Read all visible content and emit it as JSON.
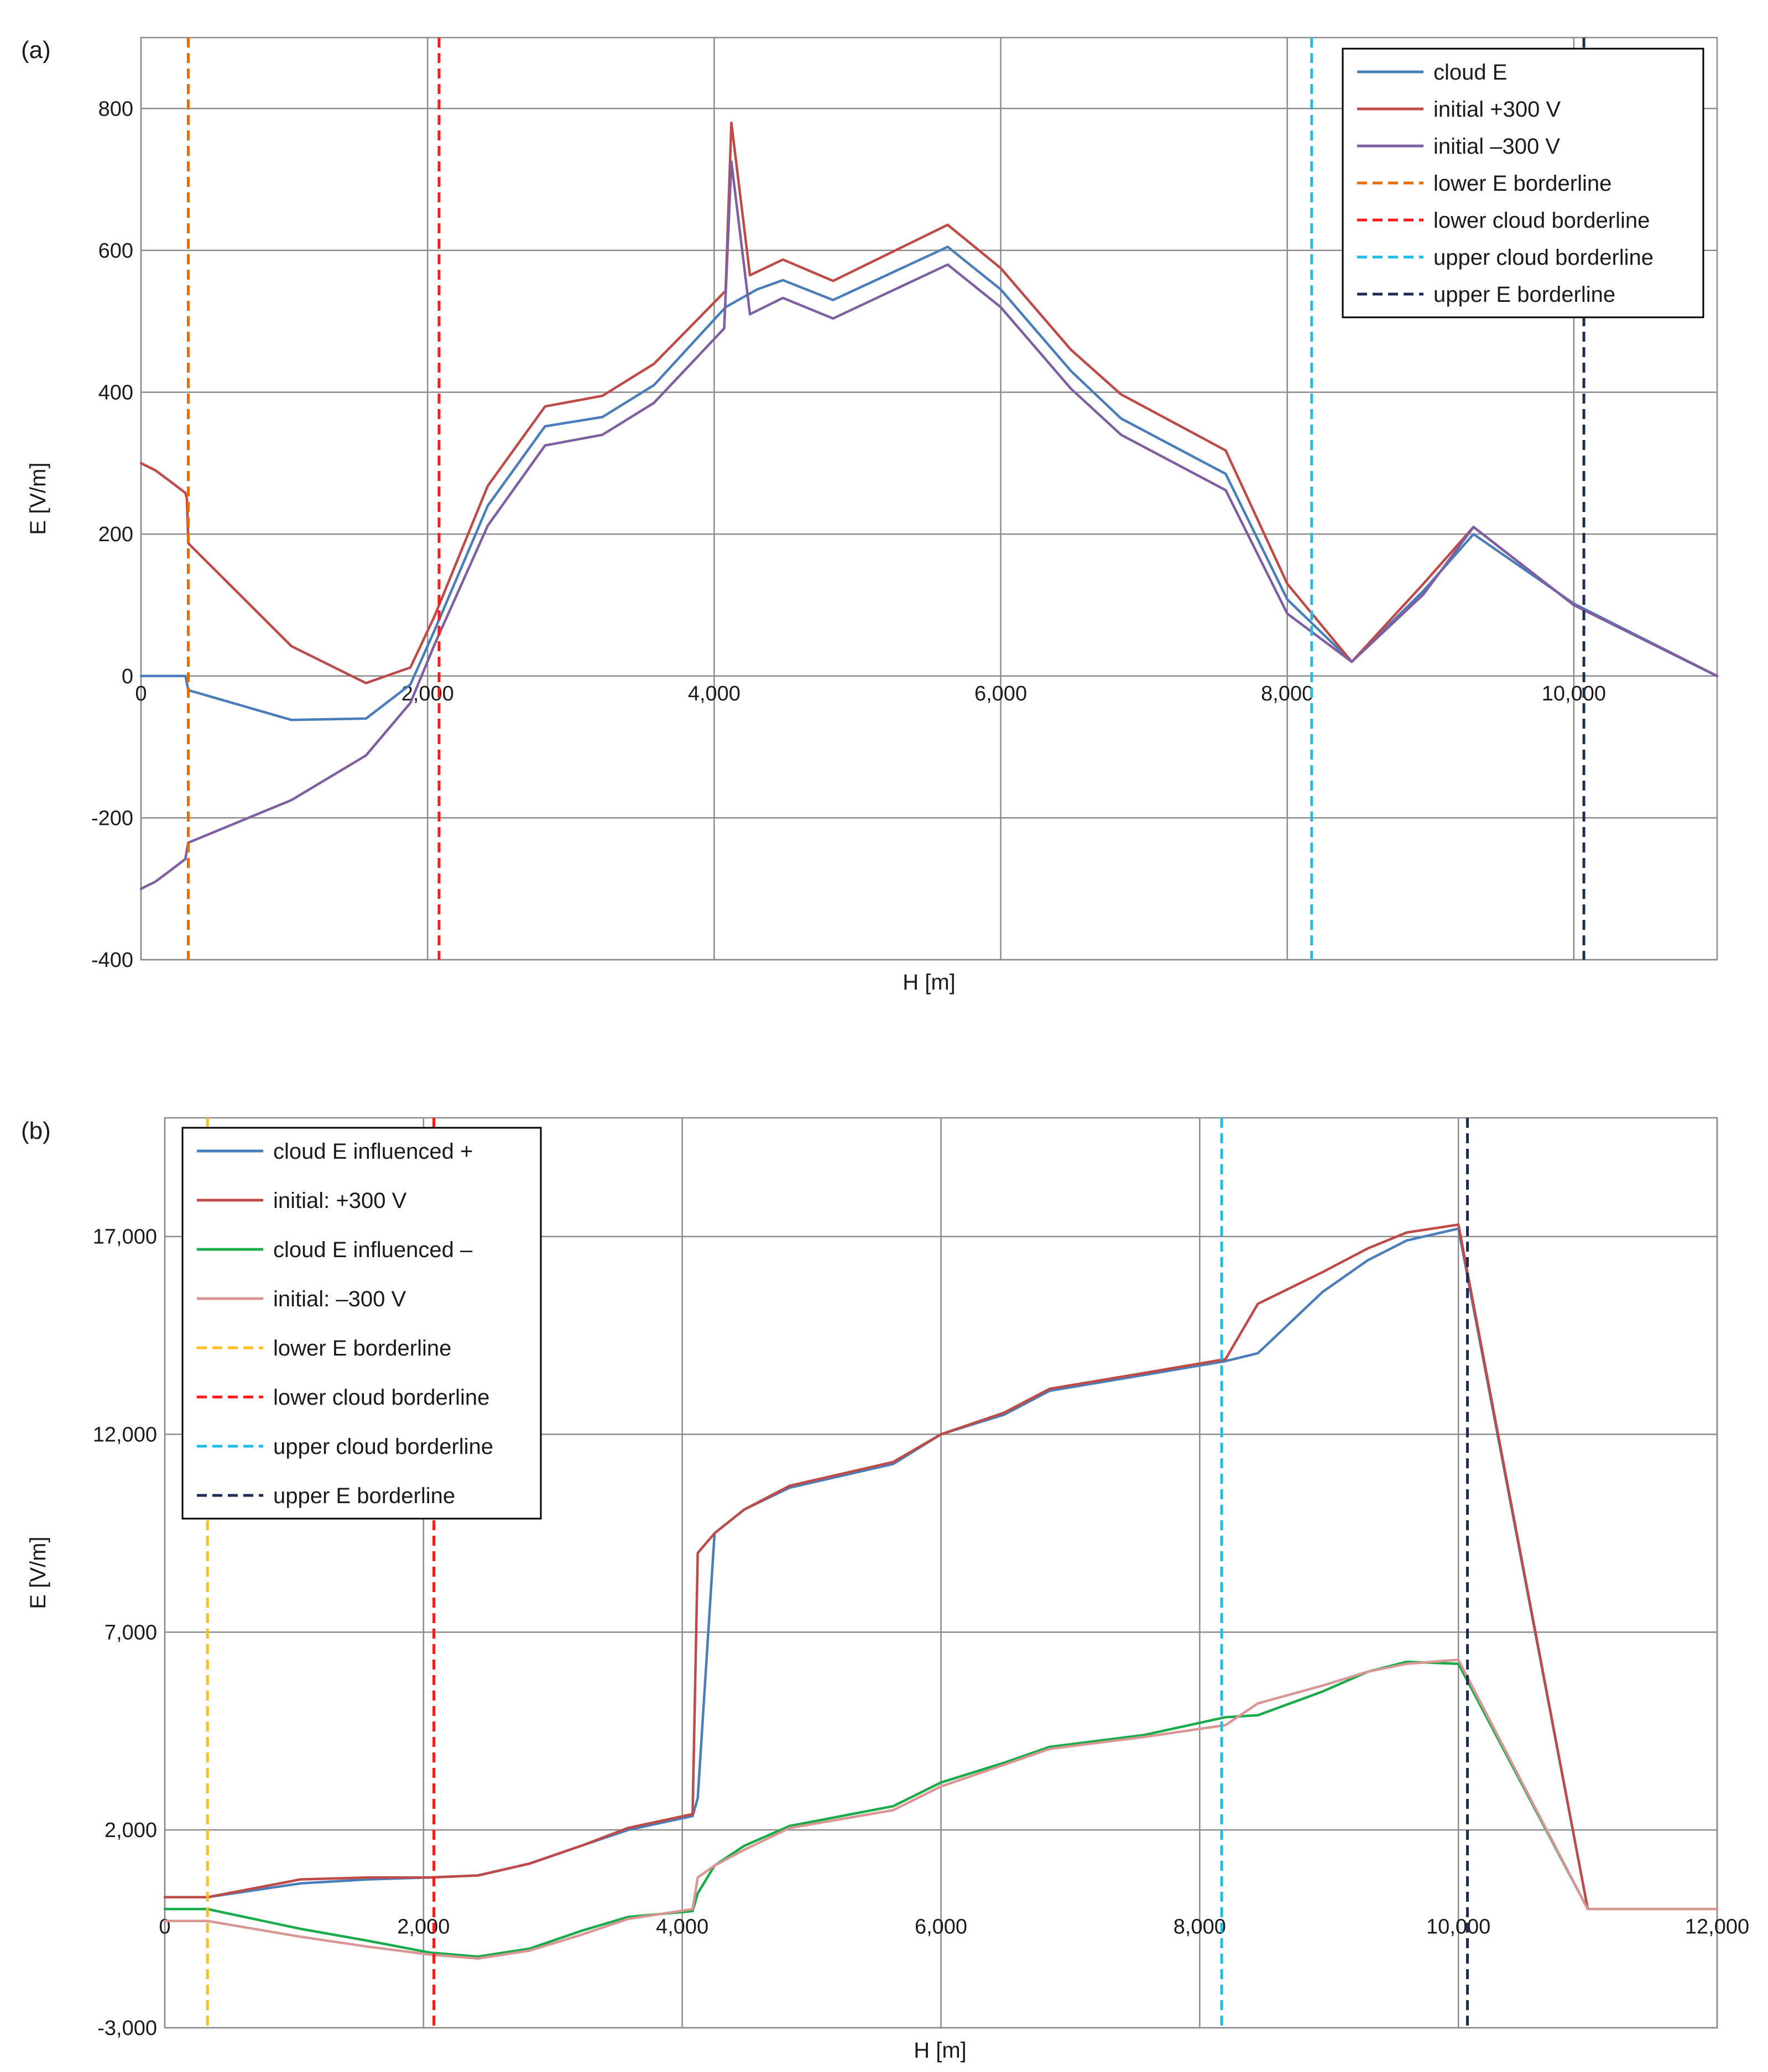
{
  "chart_data": [
    {
      "panel": "(a)",
      "type": "line",
      "title": "",
      "xlabel": "H [m]",
      "ylabel": "E [V/m]",
      "xlim": [
        0,
        11000
      ],
      "ylim": [
        -400,
        900
      ],
      "xticks": [
        0,
        2000,
        4000,
        6000,
        8000,
        10000
      ],
      "xtick_labels": [
        "0",
        "2,000",
        "4,000",
        "6,000",
        "8,000",
        "10,000"
      ],
      "yticks": [
        -400,
        -200,
        0,
        200,
        400,
        600,
        800
      ],
      "ytick_labels": [
        "-400",
        "-200",
        "0",
        "200",
        "400",
        "600",
        "800"
      ],
      "grid": true,
      "legend_position": "top-right",
      "series": [
        {
          "name": "cloud E",
          "color": "#4a7ebb",
          "points": [
            [
              0,
              0
            ],
            [
              310,
              0
            ],
            [
              330,
              -20
            ],
            [
              1050,
              -62
            ],
            [
              1570,
              -60
            ],
            [
              1880,
              -12
            ],
            [
              2050,
              65
            ],
            [
              2420,
              240
            ],
            [
              2820,
              352
            ],
            [
              3220,
              365
            ],
            [
              3580,
              410
            ],
            [
              4080,
              520
            ],
            [
              4300,
              545
            ],
            [
              4480,
              558
            ],
            [
              4830,
              530
            ],
            [
              5630,
              605
            ],
            [
              6000,
              545
            ],
            [
              6490,
              430
            ],
            [
              6840,
              363
            ],
            [
              7570,
              285
            ],
            [
              8000,
              108
            ],
            [
              8450,
              20
            ],
            [
              8950,
              120
            ],
            [
              9300,
              200
            ],
            [
              10000,
              102
            ],
            [
              11000,
              0
            ]
          ]
        },
        {
          "name": "initial +300 V",
          "color": "#be4b48",
          "points": [
            [
              0,
              300
            ],
            [
              100,
              290
            ],
            [
              200,
              275
            ],
            [
              310,
              258
            ],
            [
              320,
              250
            ],
            [
              330,
              187
            ],
            [
              1050,
              42
            ],
            [
              1570,
              -10
            ],
            [
              1880,
              12
            ],
            [
              2050,
              85
            ],
            [
              2420,
              268
            ],
            [
              2820,
              380
            ],
            [
              3220,
              395
            ],
            [
              3580,
              440
            ],
            [
              4080,
              543
            ],
            [
              4120,
              780
            ],
            [
              4250,
              565
            ],
            [
              4480,
              587
            ],
            [
              4830,
              557
            ],
            [
              5630,
              636
            ],
            [
              6000,
              575
            ],
            [
              6490,
              460
            ],
            [
              6840,
              397
            ],
            [
              7570,
              318
            ],
            [
              8000,
              130
            ],
            [
              8450,
              20
            ],
            [
              8950,
              130
            ],
            [
              9300,
              210
            ],
            [
              10000,
              100
            ],
            [
              11000,
              0
            ]
          ]
        },
        {
          "name": "initial –300 V",
          "color": "#7e5fa2",
          "points": [
            [
              0,
              -300
            ],
            [
              100,
              -290
            ],
            [
              200,
              -275
            ],
            [
              310,
              -258
            ],
            [
              320,
              -245
            ],
            [
              330,
              -235
            ],
            [
              1050,
              -175
            ],
            [
              1570,
              -112
            ],
            [
              1880,
              -38
            ],
            [
              2050,
              45
            ],
            [
              2420,
              212
            ],
            [
              2820,
              325
            ],
            [
              3220,
              340
            ],
            [
              3580,
              385
            ],
            [
              4070,
              490
            ],
            [
              4120,
              725
            ],
            [
              4250,
              510
            ],
            [
              4480,
              533
            ],
            [
              4830,
              504
            ],
            [
              5630,
              580
            ],
            [
              6000,
              520
            ],
            [
              6490,
              405
            ],
            [
              6840,
              340
            ],
            [
              7570,
              262
            ],
            [
              8000,
              88
            ],
            [
              8450,
              20
            ],
            [
              8950,
              115
            ],
            [
              9300,
              210
            ],
            [
              10000,
              100
            ],
            [
              11000,
              0
            ]
          ]
        },
        {
          "name": "lower E borderline",
          "color": "#e46c0a",
          "dashed": true,
          "x": 330
        },
        {
          "name": "lower cloud borderline",
          "color": "#ff1a1a",
          "dashed": true,
          "x": 2080
        },
        {
          "name": "upper cloud borderline",
          "color": "#1ebde8",
          "dashed": true,
          "x": 8170
        },
        {
          "name": "upper E borderline",
          "color": "#1c2c54",
          "dashed": true,
          "x": 10070
        }
      ]
    },
    {
      "panel": "(b)",
      "type": "line",
      "title": "",
      "xlabel": "H [m]",
      "ylabel": "E [V/m]",
      "xlim": [
        0,
        12000
      ],
      "ylim": [
        -3000,
        20000
      ],
      "xticks": [
        0,
        2000,
        4000,
        6000,
        8000,
        10000,
        12000
      ],
      "xtick_labels": [
        "0",
        "2,000",
        "4,000",
        "6,000",
        "8,000",
        "10,000",
        "12,000"
      ],
      "yticks": [
        -3000,
        2000,
        7000,
        12000,
        17000
      ],
      "ytick_labels": [
        "-3,000",
        "2,000",
        "7,000",
        "12,000",
        "17,000"
      ],
      "grid": true,
      "legend_position": "top-left",
      "series": [
        {
          "name": "cloud E influenced +",
          "color": "#4a7ebb",
          "points": [
            [
              0,
              300
            ],
            [
              330,
              300
            ],
            [
              1050,
              650
            ],
            [
              1570,
              750
            ],
            [
              2050,
              800
            ],
            [
              2420,
              850
            ],
            [
              2820,
              1150
            ],
            [
              3220,
              1600
            ],
            [
              3580,
              2000
            ],
            [
              4080,
              2350
            ],
            [
              4120,
              2800
            ],
            [
              4250,
              9500
            ],
            [
              4480,
              10100
            ],
            [
              4830,
              10650
            ],
            [
              5630,
              11250
            ],
            [
              6000,
              12000
            ],
            [
              6490,
              12500
            ],
            [
              6840,
              13100
            ],
            [
              7570,
              13500
            ],
            [
              8200,
              13850
            ],
            [
              8450,
              14050
            ],
            [
              8950,
              15600
            ],
            [
              9300,
              16400
            ],
            [
              9600,
              16900
            ],
            [
              10000,
              17200
            ],
            [
              11000,
              0
            ],
            [
              12000,
              0
            ]
          ]
        },
        {
          "name": "initial: +300 V",
          "color": "#be4b48",
          "points": [
            [
              0,
              300
            ],
            [
              330,
              300
            ],
            [
              1050,
              750
            ],
            [
              1570,
              800
            ],
            [
              2050,
              800
            ],
            [
              2420,
              850
            ],
            [
              2820,
              1150
            ],
            [
              3220,
              1600
            ],
            [
              3580,
              2050
            ],
            [
              4080,
              2400
            ],
            [
              4120,
              9000
            ],
            [
              4250,
              9500
            ],
            [
              4480,
              10100
            ],
            [
              4830,
              10700
            ],
            [
              5630,
              11300
            ],
            [
              6000,
              12000
            ],
            [
              6490,
              12550
            ],
            [
              6840,
              13150
            ],
            [
              7570,
              13550
            ],
            [
              8200,
              13900
            ],
            [
              8450,
              15300
            ],
            [
              8950,
              16100
            ],
            [
              9300,
              16700
            ],
            [
              9600,
              17100
            ],
            [
              10000,
              17300
            ],
            [
              11000,
              0
            ],
            [
              12000,
              0
            ]
          ]
        },
        {
          "name": "cloud E influenced –",
          "color": "#1aab4a",
          "points": [
            [
              0,
              0
            ],
            [
              330,
              0
            ],
            [
              1050,
              -500
            ],
            [
              1570,
              -800
            ],
            [
              2050,
              -1100
            ],
            [
              2420,
              -1200
            ],
            [
              2820,
              -1000
            ],
            [
              3220,
              -550
            ],
            [
              3580,
              -200
            ],
            [
              4080,
              -50
            ],
            [
              4120,
              400
            ],
            [
              4250,
              1100
            ],
            [
              4480,
              1600
            ],
            [
              4830,
              2100
            ],
            [
              5630,
              2600
            ],
            [
              6000,
              3200
            ],
            [
              6490,
              3700
            ],
            [
              6840,
              4100
            ],
            [
              7570,
              4400
            ],
            [
              8200,
              4850
            ],
            [
              8450,
              4900
            ],
            [
              8950,
              5500
            ],
            [
              9300,
              6000
            ],
            [
              9600,
              6250
            ],
            [
              10000,
              6200
            ],
            [
              11000,
              0
            ],
            [
              12000,
              0
            ]
          ]
        },
        {
          "name": "initial: –300 V",
          "color": "#d99694",
          "points": [
            [
              0,
              -300
            ],
            [
              330,
              -300
            ],
            [
              1050,
              -700
            ],
            [
              1570,
              -950
            ],
            [
              2050,
              -1150
            ],
            [
              2420,
              -1250
            ],
            [
              2820,
              -1050
            ],
            [
              3220,
              -650
            ],
            [
              3580,
              -250
            ],
            [
              4080,
              0
            ],
            [
              4120,
              800
            ],
            [
              4250,
              1100
            ],
            [
              4480,
              1500
            ],
            [
              4830,
              2050
            ],
            [
              5630,
              2500
            ],
            [
              6000,
              3100
            ],
            [
              6490,
              3650
            ],
            [
              6840,
              4050
            ],
            [
              7570,
              4350
            ],
            [
              8200,
              4650
            ],
            [
              8450,
              5200
            ],
            [
              8950,
              5650
            ],
            [
              9300,
              6000
            ],
            [
              9600,
              6200
            ],
            [
              10000,
              6300
            ],
            [
              11000,
              0
            ],
            [
              12000,
              0
            ]
          ]
        },
        {
          "name": "lower E borderline",
          "color": "#ffbf1f",
          "dashed": true,
          "x": 330
        },
        {
          "name": "lower cloud borderline",
          "color": "#ff1a1a",
          "dashed": true,
          "x": 2080
        },
        {
          "name": "upper cloud borderline",
          "color": "#1ebde8",
          "dashed": true,
          "x": 8170
        },
        {
          "name": "upper E borderline",
          "color": "#1c2c54",
          "dashed": true,
          "x": 10070
        }
      ]
    }
  ]
}
